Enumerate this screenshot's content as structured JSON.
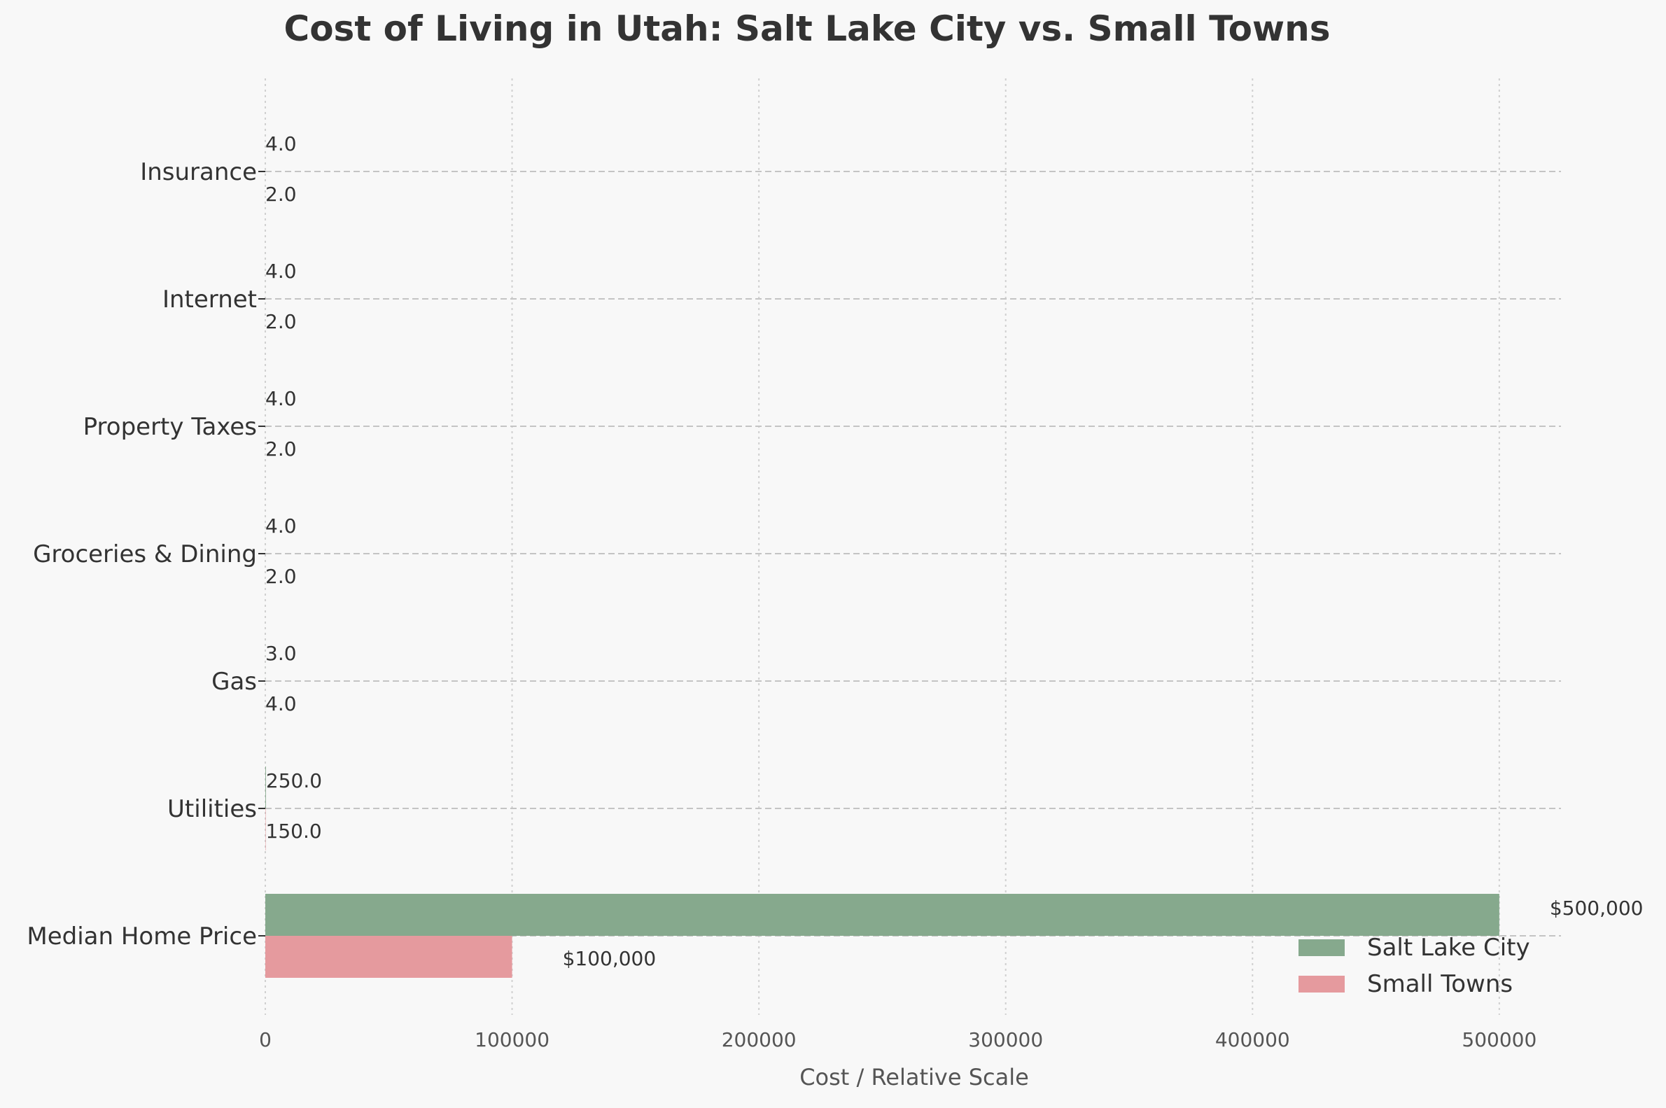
{
  "chart_data": {
    "type": "bar",
    "orientation": "horizontal",
    "title": "Cost of Living in Utah: Salt Lake City vs. Small Towns",
    "xlabel": "Cost / Relative Scale",
    "ylabel": "",
    "xlim": [
      0,
      525000
    ],
    "xticks": [
      0,
      100000,
      200000,
      300000,
      400000,
      500000
    ],
    "grid": true,
    "legend_position": "bottom-right",
    "categories": [
      "Median Home Price",
      "Utilities",
      "Gas",
      "Groceries & Dining",
      "Property Taxes",
      "Internet",
      "Insurance"
    ],
    "series": [
      {
        "name": "Salt Lake City",
        "color": "#86a98d",
        "values": [
          500000,
          250,
          3,
          4,
          4,
          4,
          4
        ],
        "labels": [
          "$500,000",
          "250.0",
          "3.0",
          "4.0",
          "4.0",
          "4.0",
          "4.0"
        ]
      },
      {
        "name": "Small Towns",
        "color": "#e59a9e",
        "values": [
          100000,
          150,
          4,
          2,
          2,
          2,
          2
        ],
        "labels": [
          "$100,000",
          "150.0",
          "4.0",
          "2.0",
          "2.0",
          "2.0",
          "2.0"
        ]
      }
    ]
  }
}
